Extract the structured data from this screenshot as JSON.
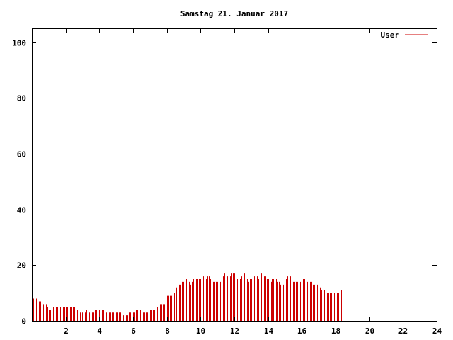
{
  "chart_data": {
    "type": "bar",
    "title": "Samstag 21. Januar 2017",
    "xlabel": "",
    "ylabel": "",
    "xlim": [
      0,
      24
    ],
    "ylim": [
      0,
      105
    ],
    "x_ticks": [
      2,
      4,
      6,
      8,
      10,
      12,
      14,
      16,
      18,
      20,
      22,
      24
    ],
    "y_ticks": [
      0,
      20,
      40,
      60,
      80,
      100
    ],
    "grid": false,
    "legend_position": "top-right",
    "bar_step_hours": 0.0833,
    "series": [
      {
        "name": "User",
        "color": "#cc0000",
        "values": [
          7,
          8,
          7,
          8,
          8,
          7,
          7,
          7,
          6,
          6,
          6,
          5,
          4,
          4,
          5,
          5,
          6,
          5,
          5,
          5,
          5,
          5,
          5,
          5,
          5,
          5,
          5,
          5,
          5,
          5,
          5,
          5,
          4,
          4,
          3,
          3,
          3,
          3,
          3,
          4,
          3,
          3,
          3,
          3,
          3,
          4,
          4,
          5,
          4,
          4,
          4,
          4,
          4,
          3,
          3,
          3,
          3,
          3,
          3,
          3,
          3,
          3,
          3,
          3,
          3,
          2,
          2,
          2,
          2,
          3,
          3,
          3,
          3,
          3,
          4,
          4,
          4,
          4,
          4,
          3,
          3,
          3,
          3,
          4,
          4,
          4,
          4,
          4,
          4,
          5,
          6,
          6,
          6,
          6,
          6,
          8,
          9,
          9,
          9,
          9,
          10,
          10,
          10,
          12,
          13,
          13,
          13,
          14,
          14,
          14,
          15,
          15,
          14,
          13,
          14,
          15,
          15,
          15,
          15,
          15,
          15,
          15,
          16,
          15,
          15,
          16,
          16,
          15,
          15,
          14,
          14,
          14,
          14,
          14,
          14,
          15,
          16,
          17,
          17,
          16,
          16,
          16,
          17,
          17,
          17,
          16,
          15,
          15,
          15,
          16,
          16,
          17,
          16,
          15,
          14,
          15,
          15,
          15,
          16,
          16,
          16,
          15,
          17,
          17,
          16,
          16,
          16,
          15,
          15,
          15,
          14,
          15,
          15,
          15,
          15,
          14,
          14,
          13,
          13,
          13,
          14,
          15,
          16,
          16,
          16,
          16,
          14,
          14,
          14,
          14,
          14,
          14,
          15,
          15,
          15,
          15,
          14,
          14,
          14,
          14,
          13,
          13,
          13,
          13,
          12,
          12,
          11,
          11,
          11,
          11,
          10,
          10,
          10,
          10,
          10,
          10,
          10,
          10,
          10,
          10,
          11,
          11
        ]
      }
    ]
  }
}
